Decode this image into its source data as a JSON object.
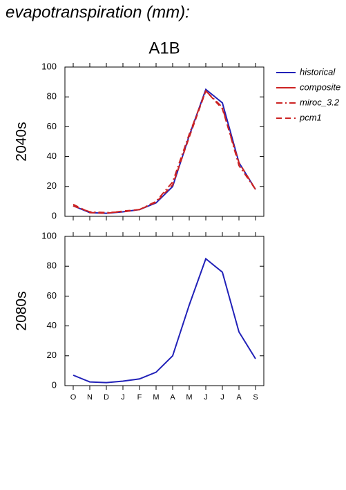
{
  "title": "evapotranspiration (mm):",
  "chart_data": {
    "type": "line",
    "title": "A1B",
    "categories": [
      "O",
      "N",
      "D",
      "J",
      "F",
      "M",
      "A",
      "M",
      "J",
      "J",
      "A",
      "S"
    ],
    "ylim": [
      0,
      100
    ],
    "yticks": [
      0,
      20,
      40,
      60,
      80,
      100
    ],
    "panels": [
      {
        "ylabel": "2040s",
        "legend": "outside right",
        "series": [
          {
            "name": "historical",
            "color": "#2121b8",
            "dash": "solid",
            "values": [
              7,
              2.5,
              2,
              3,
              4.5,
              9,
              20,
              54,
              85,
              76,
              36,
              18
            ]
          },
          {
            "name": "composite",
            "color": "#cc2222",
            "dash": "solid",
            "values": [
              null,
              null,
              null,
              null,
              null,
              null,
              null,
              null,
              null,
              null,
              null,
              null
            ]
          },
          {
            "name": "miroc_3.2",
            "color": "#cc2222",
            "dash": "dashdot",
            "values": [
              7,
              3,
              2.5,
              3,
              4.5,
              10,
              23,
              55,
              84,
              73,
              34,
              18
            ]
          },
          {
            "name": "pcm1",
            "color": "#cc2222",
            "dash": "dashed",
            "values": [
              8,
              2.5,
              2,
              3.5,
              4.5,
              9.5,
              21,
              53,
              84,
              72,
              36,
              18
            ]
          }
        ]
      },
      {
        "ylabel": "2080s",
        "series": [
          {
            "name": "historical",
            "color": "#2121b8",
            "dash": "solid",
            "values": [
              7,
              2.5,
              2,
              3,
              4.5,
              9,
              20,
              54,
              85,
              76,
              36,
              18
            ]
          }
        ]
      }
    ]
  }
}
